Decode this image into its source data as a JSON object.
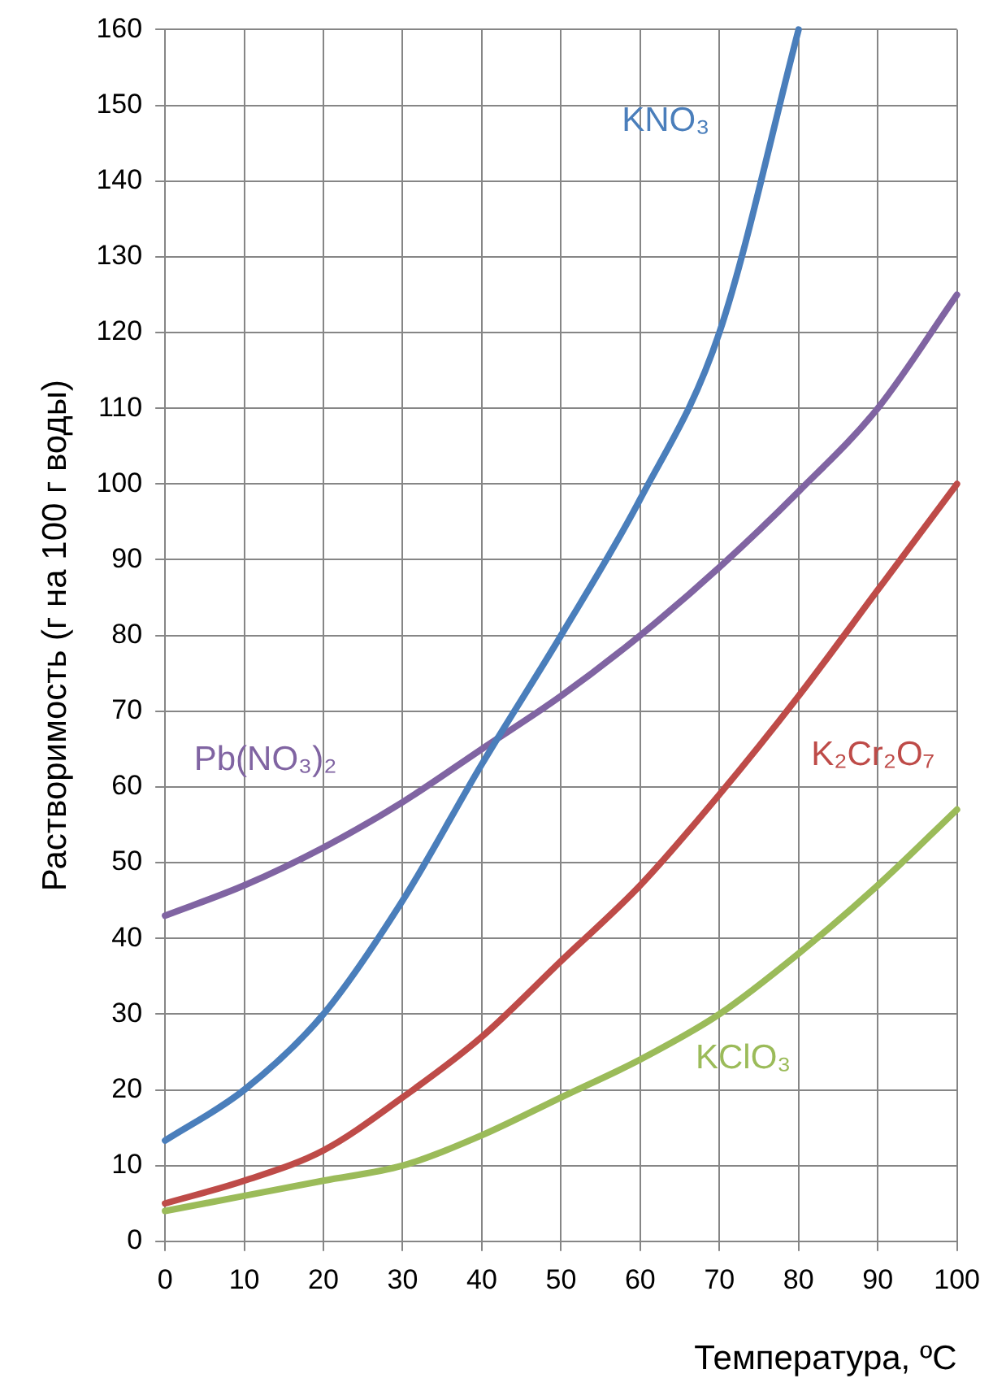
{
  "chart_data": {
    "type": "line",
    "xlabel": "Температура, ºC",
    "ylabel": "Растворимость (г на 100 г воды)",
    "x": [
      0,
      10,
      20,
      30,
      40,
      50,
      60,
      70,
      80,
      90,
      100
    ],
    "xlim": [
      0,
      100
    ],
    "xticks": [
      0,
      10,
      20,
      30,
      40,
      50,
      60,
      70,
      80,
      90,
      100
    ],
    "ylim": [
      0,
      160
    ],
    "yticks": [
      0,
      10,
      20,
      30,
      40,
      50,
      60,
      70,
      80,
      90,
      100,
      110,
      120,
      130,
      140,
      150,
      160
    ],
    "grid": true,
    "legend": false,
    "marker": "none",
    "line_style": "solid",
    "series": [
      {
        "name": "KNO₃",
        "color": "#4a7ebb",
        "x": [
          0,
          10,
          20,
          30,
          40,
          50,
          60,
          70,
          80
        ],
        "values": [
          13.3,
          20,
          30,
          45,
          63,
          80,
          98,
          120,
          160
        ]
      },
      {
        "name": "Pb(NO₃)₂",
        "color": "#8064a2",
        "values": [
          43,
          47,
          52,
          58,
          65,
          72,
          80,
          89,
          99,
          110,
          125
        ]
      },
      {
        "name": "K₂Cr₂O₇",
        "color": "#be4b48",
        "values": [
          5,
          8,
          12,
          19,
          27,
          37,
          47,
          59,
          72,
          86,
          100
        ]
      },
      {
        "name": "KClO₃",
        "color": "#9bbb59",
        "values": [
          4,
          6,
          8,
          10,
          14,
          19,
          24,
          30,
          38,
          47,
          57
        ]
      }
    ]
  }
}
